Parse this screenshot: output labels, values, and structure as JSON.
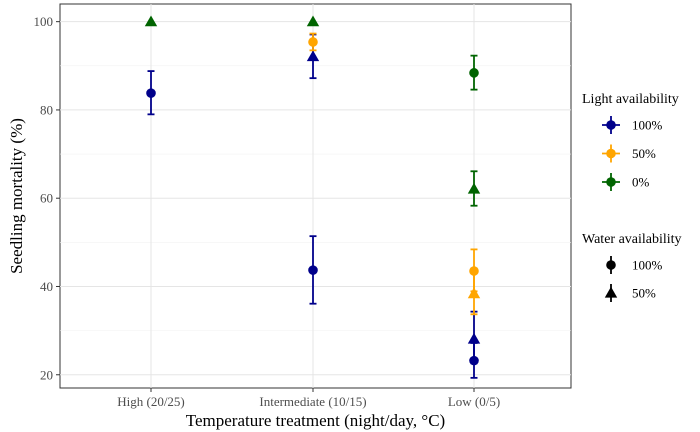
{
  "chart_data": {
    "type": "scatter",
    "xlabel": "Temperature treatment (night/day, °C)",
    "ylabel": "Seedling mortality (%)",
    "categories": [
      "High (20/25)",
      "Intermediate (10/15)",
      "Low (0/5)"
    ],
    "ylim": [
      17,
      104
    ],
    "yticks": [
      20,
      40,
      60,
      80,
      100
    ],
    "grid": true,
    "legends": {
      "light": {
        "title": "Light availability",
        "entries": [
          {
            "label": "100%",
            "color": "#00008B"
          },
          {
            "label": "50%",
            "color": "#FFA500"
          },
          {
            "label": "0%",
            "color": "#006400"
          }
        ]
      },
      "water": {
        "title": "Water availability",
        "entries": [
          {
            "label": "100%",
            "shape": "circle"
          },
          {
            "label": "50%",
            "shape": "triangle"
          }
        ]
      }
    },
    "points": [
      {
        "category": "High (20/25)",
        "light": "100%",
        "water": "100%",
        "y": 83.8,
        "ymin": 79.0,
        "ymax": 88.8
      },
      {
        "category": "High (20/25)",
        "light": "0%",
        "water": "50%",
        "y": 100,
        "ymin": 100,
        "ymax": 100
      },
      {
        "category": "Intermediate (10/15)",
        "light": "100%",
        "water": "100%",
        "y": 43.7,
        "ymin": 36.1,
        "ymax": 51.4
      },
      {
        "category": "Intermediate (10/15)",
        "light": "100%",
        "water": "50%",
        "y": 92.1,
        "ymin": 87.2,
        "ymax": 97.1
      },
      {
        "category": "Intermediate (10/15)",
        "light": "50%",
        "water": "100%",
        "y": 95.4,
        "ymin": 93.5,
        "ymax": 97.3
      },
      {
        "category": "Intermediate (10/15)",
        "light": "0%",
        "water": "50%",
        "y": 100,
        "ymin": 100,
        "ymax": 100
      },
      {
        "category": "Low (0/5)",
        "light": "100%",
        "water": "100%",
        "y": 23.2,
        "ymin": 19.3,
        "ymax": 27.2
      },
      {
        "category": "Low (0/5)",
        "light": "100%",
        "water": "50%",
        "y": 28.1,
        "ymin": 22.6,
        "ymax": 34.3
      },
      {
        "category": "Low (0/5)",
        "light": "50%",
        "water": "100%",
        "y": 43.5,
        "ymin": 38.9,
        "ymax": 48.4
      },
      {
        "category": "Low (0/5)",
        "light": "50%",
        "water": "50%",
        "y": 38.4,
        "ymin": 33.7,
        "ymax": 43.3
      },
      {
        "category": "Low (0/5)",
        "light": "0%",
        "water": "100%",
        "y": 88.4,
        "ymin": 84.6,
        "ymax": 92.3
      },
      {
        "category": "Low (0/5)",
        "light": "0%",
        "water": "50%",
        "y": 62.1,
        "ymin": 58.3,
        "ymax": 66.1
      }
    ]
  }
}
